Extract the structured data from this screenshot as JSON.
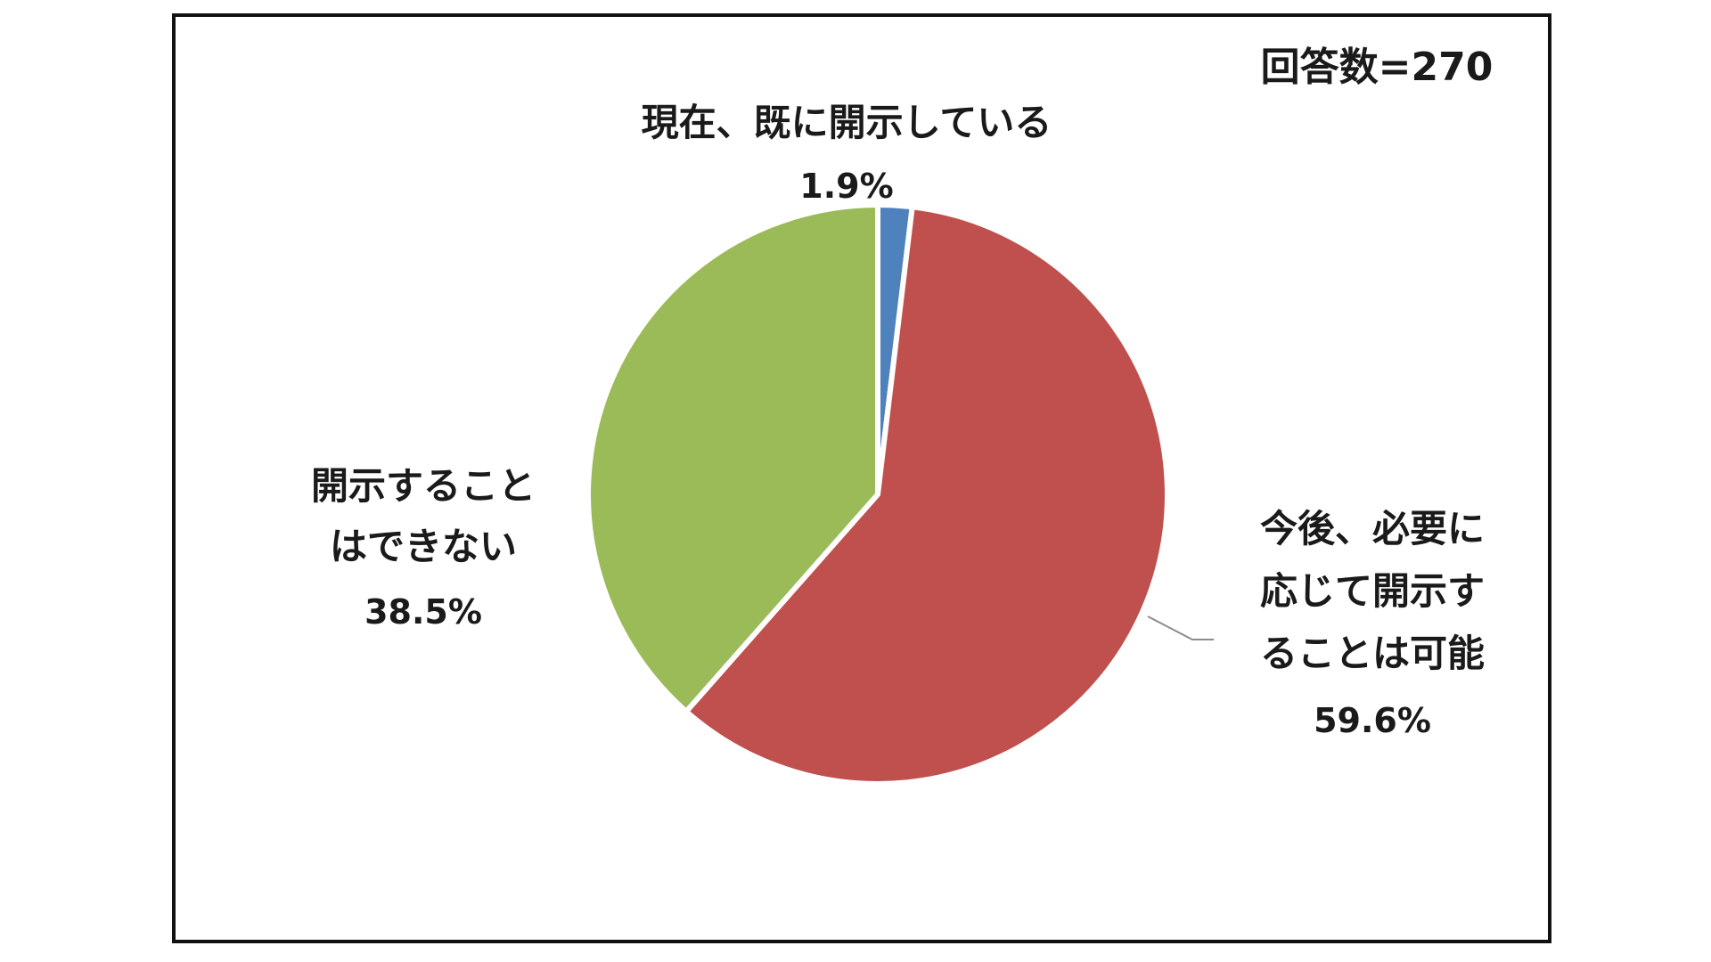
{
  "chart_data": {
    "type": "pie",
    "respondents_label": "回答数=270",
    "categories": [
      "現在、既に開示している",
      "今後、必要に応じて開示することは可能",
      "開示することはできない"
    ],
    "values": [
      1.9,
      59.6,
      38.5
    ],
    "value_labels": [
      "1.9%",
      "59.6%",
      "38.5%"
    ],
    "colors": [
      "#4f81bd",
      "#c0504d",
      "#9bbb59"
    ],
    "label_lines": [
      [
        "現在、既に開示している"
      ],
      [
        "今後、必要に",
        "応じて開示す",
        "ることは可能"
      ],
      [
        "開示すること",
        "はできない"
      ]
    ],
    "start_angle_deg": 0,
    "direction": "clockwise",
    "slice_separator_color": "#ffffff",
    "legend": "none"
  }
}
